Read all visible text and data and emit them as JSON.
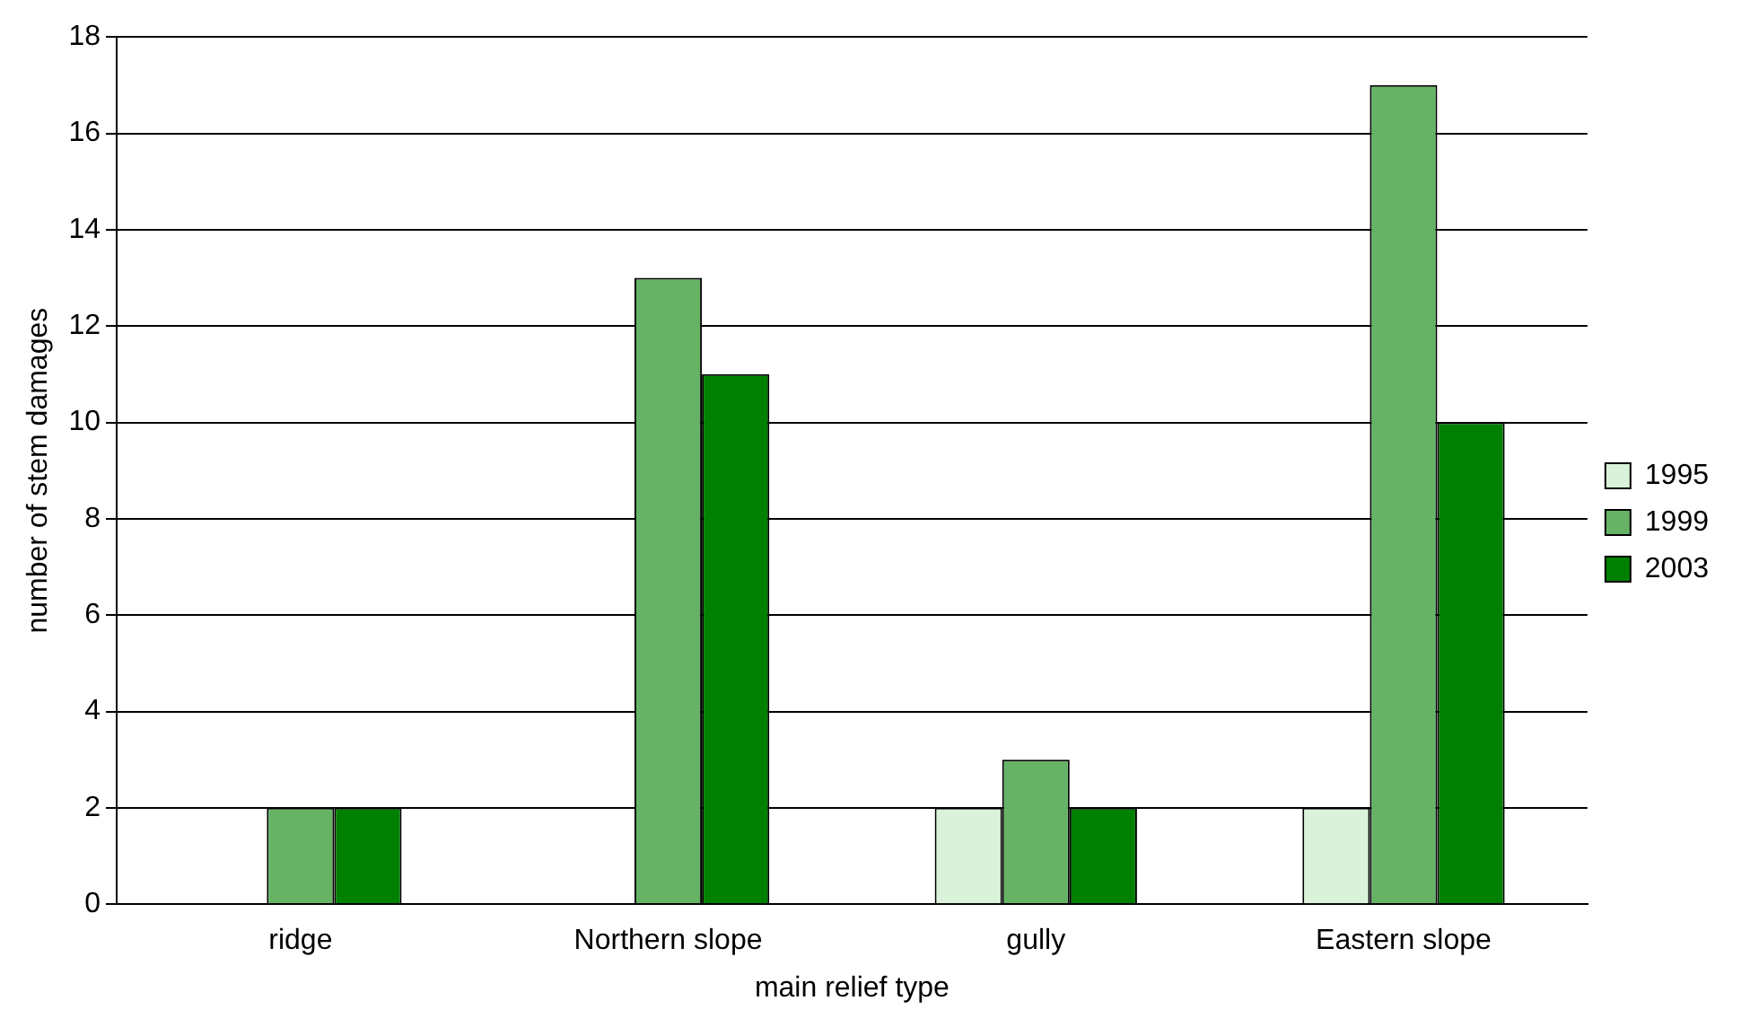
{
  "chart_data": {
    "type": "bar",
    "xlabel": "main relief type",
    "ylabel": "number of stem damages",
    "categories": [
      "ridge",
      "Northern slope",
      "gully",
      "Eastern slope"
    ],
    "series": [
      {
        "name": "1995",
        "color": "#d9f2d9",
        "values": [
          0,
          0,
          2,
          2
        ]
      },
      {
        "name": "1999",
        "color": "#66b366",
        "values": [
          2,
          13,
          3,
          17
        ]
      },
      {
        "name": "2003",
        "color": "#008000",
        "values": [
          2,
          11,
          2,
          10
        ]
      }
    ],
    "ylim": [
      0,
      18
    ],
    "yticks": [
      0,
      2,
      4,
      6,
      8,
      10,
      12,
      14,
      16,
      18
    ],
    "grid": "y",
    "legend": "right"
  }
}
